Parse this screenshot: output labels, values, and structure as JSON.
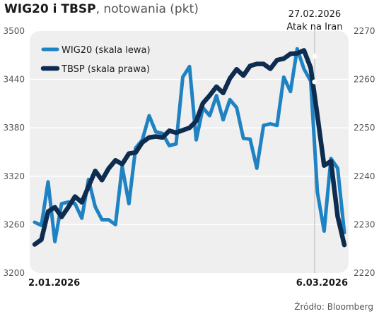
{
  "header": {
    "title": "WIG20 i TBSP",
    "subtitle": ", notowania (pkt)"
  },
  "source": "Źródło: Bloomberg",
  "colors": {
    "plot_bg": "#efefef",
    "wig20": "#1f82c3",
    "tbsp": "#0d2c4f",
    "grid": "#ffffff",
    "event_line": "#b8b8b8",
    "marker_fill": "#ffffff"
  },
  "chart_data": {
    "type": "line",
    "title": "WIG20 i TBSP",
    "subtitle": "notowania (pkt)",
    "x_labels": [
      "2.01.2026",
      "6.03.2026"
    ],
    "x_range": [
      "2026-01-02",
      "2026-03-06"
    ],
    "y_left": {
      "ticks": [
        3200,
        3260,
        3320,
        3380,
        3440,
        3500
      ],
      "range": [
        3200,
        3500
      ]
    },
    "y_right": {
      "ticks": [
        2220,
        2230,
        2240,
        2250,
        2260,
        2270
      ],
      "range": [
        2220,
        2270
      ]
    },
    "legend": {
      "position": "top-left",
      "entries": [
        "WIG20 (skala lewa)",
        "TBSP (skala prawa)"
      ]
    },
    "grid": "horizontal",
    "annotation": {
      "date_label": "27.02.2026",
      "event_label": "Atak na Iran",
      "x": "2026-02-27"
    },
    "series": [
      {
        "name": "WIG20 (skala lewa)",
        "axis": "left",
        "points": [
          [
            "2026-01-02",
            3263
          ],
          [
            "2026-01-03",
            3259
          ],
          [
            "2026-01-04",
            3313
          ],
          [
            "2026-01-05",
            3239
          ],
          [
            "2026-01-06",
            3286
          ],
          [
            "2026-01-07",
            3288
          ],
          [
            "2026-01-08",
            3286
          ],
          [
            "2026-01-09",
            3268
          ],
          [
            "2026-01-10",
            3316
          ],
          [
            "2026-01-11",
            3282
          ],
          [
            "2026-01-12",
            3266
          ],
          [
            "2026-01-13",
            3266
          ],
          [
            "2026-01-14",
            3260
          ],
          [
            "2026-01-15",
            3332
          ],
          [
            "2026-01-16",
            3286
          ],
          [
            "2026-01-17",
            3355
          ],
          [
            "2026-01-18",
            3365
          ],
          [
            "2026-01-19",
            3395
          ],
          [
            "2026-01-20",
            3375
          ],
          [
            "2026-01-21",
            3373
          ],
          [
            "2026-01-22",
            3358
          ],
          [
            "2026-01-23",
            3360
          ],
          [
            "2026-01-24",
            3443
          ],
          [
            "2026-01-25",
            3456
          ],
          [
            "2026-01-26",
            3365
          ],
          [
            "2026-01-27",
            3405
          ],
          [
            "2026-01-28",
            3395
          ],
          [
            "2026-01-29",
            3420
          ],
          [
            "2026-01-30",
            3390
          ],
          [
            "2026-01-31",
            3415
          ],
          [
            "2026-02-01",
            3405
          ],
          [
            "2026-02-02",
            3367
          ],
          [
            "2026-02-03",
            3366
          ],
          [
            "2026-02-04",
            3330
          ],
          [
            "2026-02-05",
            3383
          ],
          [
            "2026-02-06",
            3385
          ],
          [
            "2026-02-07",
            3383
          ],
          [
            "2026-02-08",
            3443
          ],
          [
            "2026-02-09",
            3425
          ],
          [
            "2026-02-10",
            3478
          ],
          [
            "2026-02-11",
            3453
          ],
          [
            "2026-02-12",
            3438
          ],
          [
            "2026-02-13",
            3300
          ],
          [
            "2026-02-14",
            3252
          ],
          [
            "2026-02-15",
            3342
          ],
          [
            "2026-02-16",
            3330
          ],
          [
            "2026-02-17",
            3250
          ]
        ]
      },
      {
        "name": "TBSP (skala prawa)",
        "axis": "right",
        "points": [
          [
            "2026-01-02",
            2225.9
          ],
          [
            "2026-01-03",
            2226.9
          ],
          [
            "2026-01-04",
            2232.7
          ],
          [
            "2026-01-05",
            2233.6
          ],
          [
            "2026-01-06",
            2231.6
          ],
          [
            "2026-01-07",
            2233.6
          ],
          [
            "2026-01-08",
            2235.8
          ],
          [
            "2026-01-09",
            2234.6
          ],
          [
            "2026-01-10",
            2237.9
          ],
          [
            "2026-01-11",
            2241.1
          ],
          [
            "2026-01-12",
            2239.2
          ],
          [
            "2026-01-13",
            2241.6
          ],
          [
            "2026-01-14",
            2243.3
          ],
          [
            "2026-01-15",
            2242.5
          ],
          [
            "2026-01-16",
            2244.7
          ],
          [
            "2026-01-17",
            2244.9
          ],
          [
            "2026-01-18",
            2247.0
          ],
          [
            "2026-01-19",
            2248.0
          ],
          [
            "2026-01-20",
            2248.2
          ],
          [
            "2026-01-21",
            2248.0
          ],
          [
            "2026-01-22",
            2249.4
          ],
          [
            "2026-01-23",
            2249.0
          ],
          [
            "2026-01-24",
            2249.5
          ],
          [
            "2026-01-25",
            2250.0
          ],
          [
            "2026-01-26",
            2251.4
          ],
          [
            "2026-01-27",
            2255.1
          ],
          [
            "2026-01-28",
            2256.7
          ],
          [
            "2026-01-29",
            2258.5
          ],
          [
            "2026-01-30",
            2257.2
          ],
          [
            "2026-01-31",
            2260.2
          ],
          [
            "2026-02-01",
            2262.1
          ],
          [
            "2026-02-02",
            2260.8
          ],
          [
            "2026-02-03",
            2262.8
          ],
          [
            "2026-02-04",
            2263.2
          ],
          [
            "2026-02-05",
            2263.2
          ],
          [
            "2026-02-06",
            2262.2
          ],
          [
            "2026-02-07",
            2264.0
          ],
          [
            "2026-02-08",
            2264.3
          ],
          [
            "2026-02-09",
            2265.3
          ],
          [
            "2026-02-10",
            2265.4
          ],
          [
            "2026-02-11",
            2266.0
          ],
          [
            "2026-02-12",
            2262.4
          ],
          [
            "2026-02-13",
            2252.5
          ],
          [
            "2026-02-14",
            2242.2
          ],
          [
            "2026-02-15",
            2243.1
          ],
          [
            "2026-02-16",
            2231.7
          ],
          [
            "2026-02-17",
            2225.8
          ]
        ]
      }
    ]
  }
}
